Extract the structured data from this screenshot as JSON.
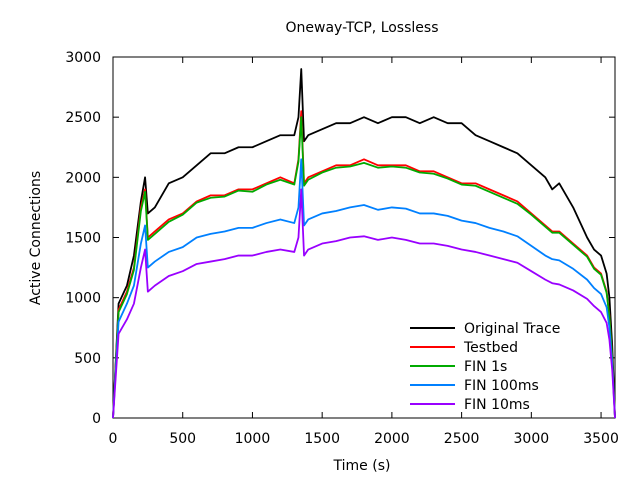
{
  "chart_data": {
    "type": "line",
    "title": "Oneway-TCP, Lossless",
    "xlabel": "Time (s)",
    "ylabel": "Active Connections",
    "xlim": [
      0,
      3600
    ],
    "ylim": [
      0,
      3000
    ],
    "xticks": [
      0,
      500,
      1000,
      1500,
      2000,
      2500,
      3000,
      3500
    ],
    "yticks": [
      0,
      500,
      1000,
      1500,
      2000,
      2500,
      3000
    ],
    "grid": false,
    "legend_position": "bottom-right",
    "series": [
      {
        "name": "Original Trace",
        "color": "#000000",
        "x": [
          0,
          40,
          100,
          150,
          200,
          230,
          250,
          300,
          400,
          500,
          600,
          700,
          800,
          900,
          1000,
          1100,
          1200,
          1300,
          1330,
          1350,
          1370,
          1400,
          1500,
          1600,
          1700,
          1800,
          1900,
          2000,
          2100,
          2200,
          2300,
          2400,
          2500,
          2600,
          2700,
          2800,
          2900,
          3000,
          3100,
          3150,
          3200,
          3300,
          3400,
          3450,
          3500,
          3540,
          3560,
          3580,
          3600
        ],
        "y": [
          0,
          950,
          1100,
          1350,
          1800,
          2000,
          1700,
          1750,
          1950,
          2000,
          2100,
          2200,
          2200,
          2250,
          2250,
          2300,
          2350,
          2350,
          2500,
          2900,
          2300,
          2350,
          2400,
          2450,
          2450,
          2500,
          2450,
          2500,
          2500,
          2450,
          2500,
          2450,
          2450,
          2350,
          2300,
          2250,
          2200,
          2100,
          2000,
          1900,
          1950,
          1750,
          1500,
          1400,
          1350,
          1200,
          1000,
          600,
          0
        ]
      },
      {
        "name": "Testbed",
        "color": "#ff0000",
        "x": [
          0,
          40,
          100,
          150,
          200,
          230,
          250,
          300,
          400,
          500,
          600,
          700,
          800,
          900,
          1000,
          1100,
          1200,
          1300,
          1330,
          1350,
          1370,
          1400,
          1500,
          1600,
          1700,
          1800,
          1900,
          2000,
          2100,
          2200,
          2300,
          2400,
          2500,
          2600,
          2700,
          2800,
          2900,
          3000,
          3100,
          3150,
          3200,
          3300,
          3400,
          3450,
          3500,
          3540,
          3560,
          3580,
          3600
        ],
        "y": [
          0,
          900,
          1050,
          1250,
          1750,
          1900,
          1500,
          1550,
          1650,
          1700,
          1800,
          1850,
          1850,
          1900,
          1900,
          1950,
          2000,
          1950,
          2150,
          2550,
          1950,
          2000,
          2050,
          2100,
          2100,
          2150,
          2100,
          2100,
          2100,
          2050,
          2050,
          2000,
          1950,
          1950,
          1900,
          1850,
          1800,
          1700,
          1600,
          1550,
          1550,
          1450,
          1350,
          1250,
          1200,
          1050,
          850,
          500,
          0
        ]
      },
      {
        "name": "FIN 1s",
        "color": "#00aa00",
        "x": [
          0,
          40,
          100,
          150,
          200,
          230,
          250,
          300,
          400,
          500,
          600,
          700,
          800,
          900,
          1000,
          1100,
          1200,
          1300,
          1330,
          1350,
          1370,
          1400,
          1500,
          1600,
          1700,
          1800,
          1900,
          2000,
          2100,
          2200,
          2300,
          2400,
          2500,
          2600,
          2700,
          2800,
          2900,
          3000,
          3100,
          3150,
          3200,
          3300,
          3400,
          3450,
          3500,
          3540,
          3560,
          3580,
          3600
        ],
        "y": [
          0,
          880,
          1030,
          1230,
          1720,
          1880,
          1480,
          1530,
          1630,
          1690,
          1790,
          1830,
          1840,
          1890,
          1880,
          1940,
          1980,
          1940,
          2130,
          2500,
          1930,
          1980,
          2040,
          2080,
          2090,
          2120,
          2080,
          2090,
          2080,
          2040,
          2030,
          1990,
          1940,
          1930,
          1880,
          1830,
          1780,
          1690,
          1590,
          1540,
          1540,
          1440,
          1340,
          1240,
          1190,
          1040,
          840,
          490,
          0
        ]
      },
      {
        "name": "FIN 100ms",
        "color": "#0080ff",
        "x": [
          0,
          40,
          100,
          150,
          200,
          230,
          250,
          300,
          400,
          500,
          600,
          700,
          800,
          900,
          1000,
          1100,
          1200,
          1300,
          1330,
          1350,
          1370,
          1400,
          1500,
          1600,
          1700,
          1800,
          1900,
          2000,
          2100,
          2200,
          2300,
          2400,
          2500,
          2600,
          2700,
          2800,
          2900,
          3000,
          3100,
          3150,
          3200,
          3300,
          3400,
          3450,
          3500,
          3540,
          3560,
          3580,
          3600
        ],
        "y": [
          0,
          800,
          950,
          1100,
          1450,
          1600,
          1250,
          1300,
          1380,
          1420,
          1500,
          1530,
          1550,
          1580,
          1580,
          1620,
          1650,
          1620,
          1750,
          2150,
          1600,
          1650,
          1700,
          1720,
          1750,
          1770,
          1730,
          1750,
          1740,
          1700,
          1700,
          1680,
          1640,
          1620,
          1580,
          1550,
          1510,
          1430,
          1350,
          1320,
          1310,
          1240,
          1150,
          1080,
          1030,
          920,
          750,
          450,
          0
        ]
      },
      {
        "name": "FIN 10ms",
        "color": "#9900ff",
        "x": [
          0,
          40,
          100,
          150,
          200,
          230,
          250,
          300,
          400,
          500,
          600,
          700,
          800,
          900,
          1000,
          1100,
          1200,
          1300,
          1330,
          1350,
          1370,
          1400,
          1500,
          1600,
          1700,
          1800,
          1900,
          2000,
          2100,
          2200,
          2300,
          2400,
          2500,
          2600,
          2700,
          2800,
          2900,
          3000,
          3100,
          3150,
          3200,
          3300,
          3400,
          3450,
          3500,
          3540,
          3560,
          3580,
          3600
        ],
        "y": [
          0,
          700,
          820,
          950,
          1250,
          1400,
          1050,
          1100,
          1180,
          1220,
          1280,
          1300,
          1320,
          1350,
          1350,
          1380,
          1400,
          1380,
          1500,
          1900,
          1350,
          1400,
          1450,
          1470,
          1500,
          1510,
          1480,
          1500,
          1480,
          1450,
          1450,
          1430,
          1400,
          1380,
          1350,
          1320,
          1290,
          1220,
          1150,
          1120,
          1110,
          1060,
          990,
          930,
          880,
          790,
          650,
          400,
          0
        ]
      }
    ]
  }
}
